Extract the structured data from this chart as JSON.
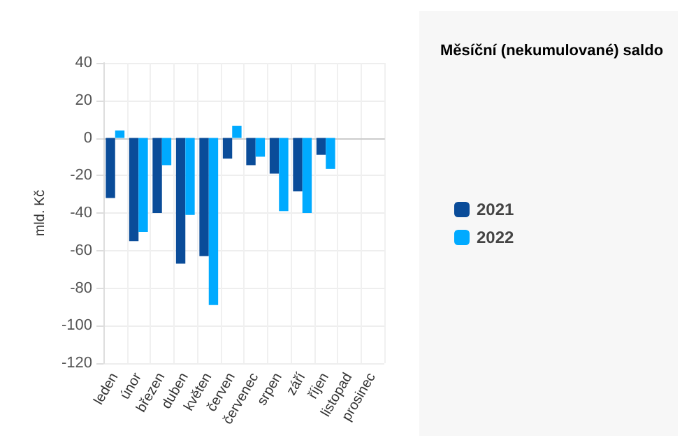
{
  "chart_data": {
    "type": "bar",
    "title": "Měsíční (nekumulované) saldo",
    "ylabel": "mld. Kč",
    "categories": [
      "leden",
      "únor",
      "březen",
      "duben",
      "květen",
      "červen",
      "červenec",
      "srpen",
      "září",
      "říjen",
      "listopad",
      "prosinec"
    ],
    "series": [
      {
        "name": "2021",
        "color": "#0a4c99",
        "values": [
          -32,
          -55,
          -40,
          -67,
          -63,
          -11,
          -14.5,
          -19,
          -28.5,
          -9,
          null,
          null
        ]
      },
      {
        "name": "2022",
        "color": "#00aaff",
        "values": [
          4,
          -50,
          -14.5,
          -41,
          -89,
          6.5,
          -10,
          -39,
          -40,
          -16.5,
          null,
          null
        ]
      }
    ],
    "ylim": [
      -120,
      40
    ],
    "yticks": [
      -120,
      -100,
      -80,
      -60,
      -40,
      -20,
      0,
      20,
      40
    ],
    "grid": true,
    "legend": "right"
  }
}
